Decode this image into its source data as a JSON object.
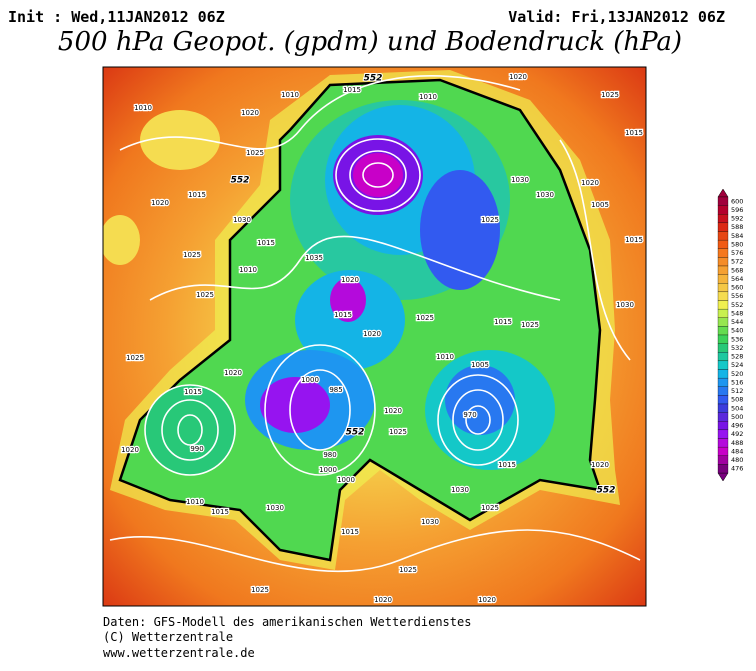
{
  "header": {
    "init": "Init : Wed,11JAN2012 06Z",
    "valid": "Valid: Fri,13JAN2012 06Z"
  },
  "title": "500 hPa Geopot. (gpdm) und Bodendruck (hPa)",
  "colorbar": {
    "levels": [
      600,
      596,
      592,
      588,
      584,
      580,
      576,
      572,
      568,
      564,
      560,
      556,
      552,
      548,
      544,
      540,
      536,
      532,
      528,
      524,
      520,
      516,
      512,
      508,
      504,
      500,
      496,
      492,
      488,
      484,
      480,
      476
    ],
    "colors": [
      "#a0003c",
      "#b4002d",
      "#c8101e",
      "#dc2814",
      "#e64614",
      "#f05a14",
      "#f5781e",
      "#f58c28",
      "#f5a032",
      "#f5b43c",
      "#f5c846",
      "#f5dc50",
      "#f0f050",
      "#c8f050",
      "#96e650",
      "#64dc50",
      "#3cd25a",
      "#28c878",
      "#1ec8a0",
      "#14c8c8",
      "#14b4e6",
      "#1e96f0",
      "#2878f0",
      "#325af0",
      "#3c3cdc",
      "#5a28dc",
      "#7814e6",
      "#9614f0",
      "#b40adc",
      "#c800c8",
      "#a000a0",
      "#78007d"
    ]
  },
  "map": {
    "isobar_labels": [
      1020,
      1010,
      1015,
      1010,
      1010,
      1020,
      1025,
      1015,
      1025,
      1020,
      1015,
      1030,
      1015,
      1025,
      1025,
      1010,
      1035,
      1020,
      1015,
      1025,
      1020,
      1015,
      1025,
      1030,
      1025,
      1030,
      1020,
      1005,
      1015,
      1030,
      1025,
      1020,
      1015,
      990,
      1005,
      1000,
      985,
      980,
      1000,
      1000,
      1020,
      1025,
      1010,
      970,
      1015,
      1020,
      1030,
      1025,
      1030,
      1015,
      1010,
      1015,
      1030,
      1025,
      1020,
      1025,
      1020,
      1020
    ],
    "contour_552_labels": [
      552,
      552,
      552,
      552
    ]
  },
  "footer": [
    "Daten: GFS-Modell des amerikanischen Wetterdienstes",
    "(C) Wetterzentrale",
    "www.wetterzentrale.de"
  ]
}
